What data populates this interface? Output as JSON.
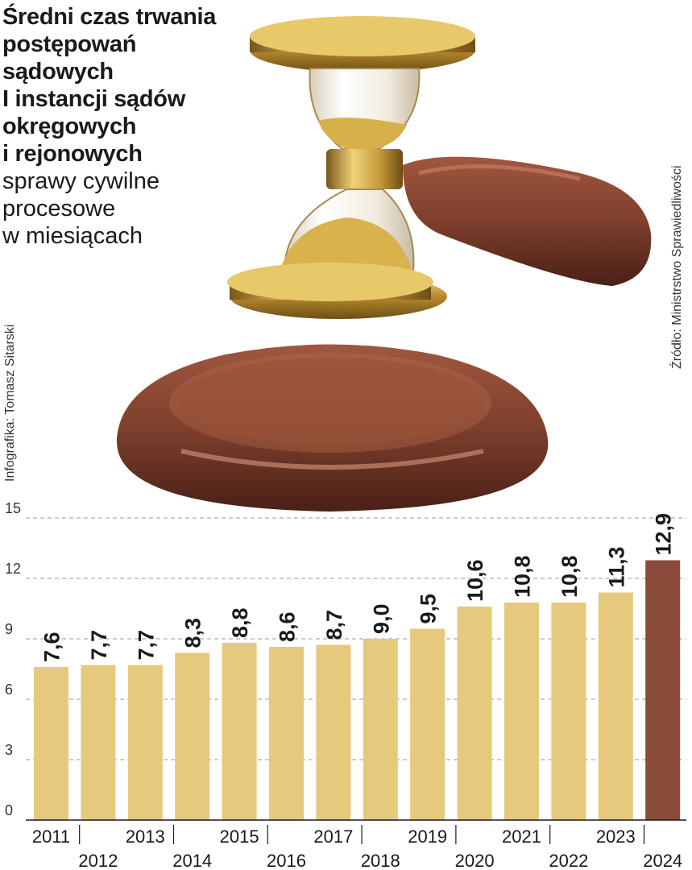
{
  "header": {
    "title": "Średni czas trwania\npostępowań\nsądowych\nI instancji sądów\nokręgowych\ni rejonowych",
    "subtitle": "sprawy cywilne\nprocesowe\nw miesiącach"
  },
  "credit": "Infografika: Tomasz Sitarski",
  "source": "Źródło: Ministrstwo Sprawiedliwości",
  "colors": {
    "bar": "#e6c97d",
    "highlight": "#8a4b3a",
    "grid": "#9a9a9a",
    "text": "#1a1a1a"
  },
  "illustration": {
    "icon_name": "gavel-hourglass-icon"
  },
  "chart_data": {
    "type": "bar",
    "categories": [
      "2011",
      "2012",
      "2013",
      "2014",
      "2015",
      "2016",
      "2017",
      "2018",
      "2019",
      "2020",
      "2021",
      "2022",
      "2023",
      "2024"
    ],
    "values": [
      7.6,
      7.7,
      7.7,
      8.3,
      8.8,
      8.6,
      8.7,
      9.0,
      9.5,
      10.6,
      10.8,
      10.8,
      11.3,
      12.9
    ],
    "value_labels": [
      "7,6",
      "7,7",
      "7,7",
      "8,3",
      "8,8",
      "8,6",
      "8,7",
      "9,0",
      "9,5",
      "10,6",
      "10,8",
      "10,8",
      "11,3",
      "12,9"
    ],
    "highlight_category": "2024",
    "yticks": [
      "0",
      "3",
      "6",
      "9",
      "12",
      "15"
    ],
    "ylim": [
      0,
      15
    ],
    "grid": true,
    "title": "",
    "xlabel": "",
    "ylabel": ""
  }
}
